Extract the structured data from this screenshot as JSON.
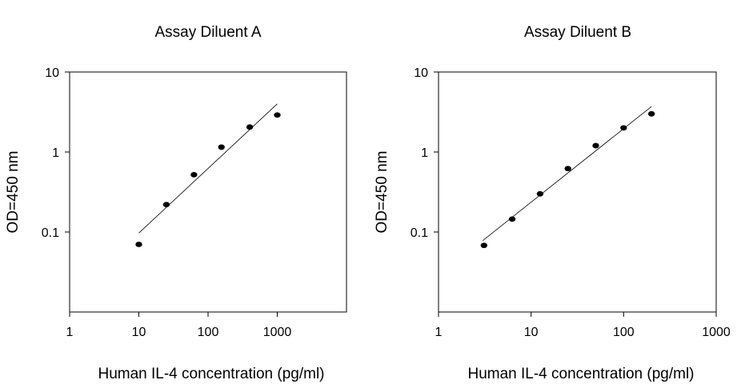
{
  "chart_data": [
    {
      "type": "scatter",
      "title": "Assay Diluent A",
      "xlabel": "Human IL-4 concentration (pg/ml)",
      "ylabel": "OD=450 nm",
      "xscale": "log",
      "yscale": "log",
      "xlim": [
        1,
        10000
      ],
      "ylim": [
        0.01,
        10
      ],
      "x_ticks": [
        1,
        10,
        100,
        1000
      ],
      "x_tick_labels": [
        "1",
        "10",
        "100",
        "1000"
      ],
      "y_ticks": [
        0.1,
        1,
        10
      ],
      "y_tick_labels": [
        "0.1",
        "1",
        "10"
      ],
      "points": [
        {
          "x": 10,
          "y": 0.07
        },
        {
          "x": 25,
          "y": 0.22
        },
        {
          "x": 62.5,
          "y": 0.52
        },
        {
          "x": 156,
          "y": 1.15
        },
        {
          "x": 400,
          "y": 2.05
        },
        {
          "x": 1000,
          "y": 2.9
        }
      ],
      "fit_line": [
        {
          "x": 10,
          "y": 0.097
        },
        {
          "x": 1000,
          "y": 4.0
        }
      ],
      "grid": false
    },
    {
      "type": "scatter",
      "title": "Assay Diluent B",
      "xlabel": "Human IL-4 concentration (pg/ml)",
      "ylabel": "OD=450 nm",
      "xscale": "log",
      "yscale": "log",
      "xlim": [
        1,
        1000
      ],
      "ylim": [
        0.01,
        10
      ],
      "x_ticks": [
        1,
        10,
        100,
        1000
      ],
      "x_tick_labels": [
        "1",
        "10",
        "100",
        "1000"
      ],
      "y_ticks": [
        0.1,
        1,
        10
      ],
      "y_tick_labels": [
        "0.1",
        "1",
        "10"
      ],
      "points": [
        {
          "x": 3.1,
          "y": 0.068
        },
        {
          "x": 6.25,
          "y": 0.145
        },
        {
          "x": 12.5,
          "y": 0.3
        },
        {
          "x": 25,
          "y": 0.62
        },
        {
          "x": 50,
          "y": 1.2
        },
        {
          "x": 100,
          "y": 2.0
        },
        {
          "x": 200,
          "y": 3.0
        }
      ],
      "fit_line": [
        {
          "x": 3,
          "y": 0.078
        },
        {
          "x": 200,
          "y": 3.7
        }
      ],
      "grid": false
    }
  ]
}
